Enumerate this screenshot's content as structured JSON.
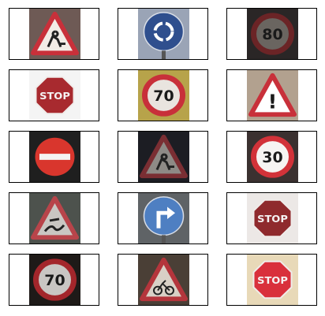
{
  "images": [
    {
      "sign": "roadworks-warning",
      "background": "#6e5a55",
      "border_color": "#c8303a",
      "fill_color": "#f2ece6"
    },
    {
      "sign": "roundabout-mandatory",
      "background": "#9aa4b6",
      "border_color": "#2f4f8e",
      "fill_color": "#2f4f8e"
    },
    {
      "sign": "speed-limit",
      "text": "80",
      "background": "#2a2626",
      "border_color": "#6b2426",
      "fill_color": "#6a6560"
    },
    {
      "sign": "stop",
      "text": "STOP",
      "background": "#f4f4f4",
      "border_color": "#a82a2f",
      "fill_color": "#a82a2f"
    },
    {
      "sign": "speed-limit",
      "text": "70",
      "background": "#b7a34a",
      "border_color": "#c8303a",
      "fill_color": "#e9e4df"
    },
    {
      "sign": "general-caution",
      "text": "!",
      "background": "#b2a18f",
      "border_color": "#c8303a",
      "fill_color": "#ffffff"
    },
    {
      "sign": "no-entry",
      "background": "#1f1f1f",
      "border_color": "#d9362d",
      "fill_color": "#d9362d"
    },
    {
      "sign": "roadworks-warning",
      "background": "#1c1d23",
      "border_color": "#7a2e33",
      "fill_color": "#8e8a86"
    },
    {
      "sign": "speed-limit",
      "text": "30",
      "background": "#3b3130",
      "border_color": "#d23239",
      "fill_color": "#f6f4f2"
    },
    {
      "sign": "slippery-road-warning",
      "background": "#4d524d",
      "border_color": "#b8444a",
      "fill_color": "#c9c6c2"
    },
    {
      "sign": "turn-right-ahead",
      "background": "#5f6366",
      "border_color": "#3e6fb4",
      "fill_color": "#4e7fc2"
    },
    {
      "sign": "stop",
      "text": "STOP",
      "background": "#ece8e6",
      "border_color": "#8f2a2d",
      "fill_color": "#8f2a2d"
    },
    {
      "sign": "speed-limit",
      "text": "70",
      "background": "#1e1a18",
      "border_color": "#a3262b",
      "fill_color": "#c9c6c3"
    },
    {
      "sign": "bicycles-crossing-warning",
      "background": "#4a3f36",
      "border_color": "#b4353c",
      "fill_color": "#d8d0c6"
    },
    {
      "sign": "stop",
      "text": "STOP",
      "background": "#e8d9b8",
      "border_color": "#d9303c",
      "fill_color": "#d9303c"
    }
  ]
}
